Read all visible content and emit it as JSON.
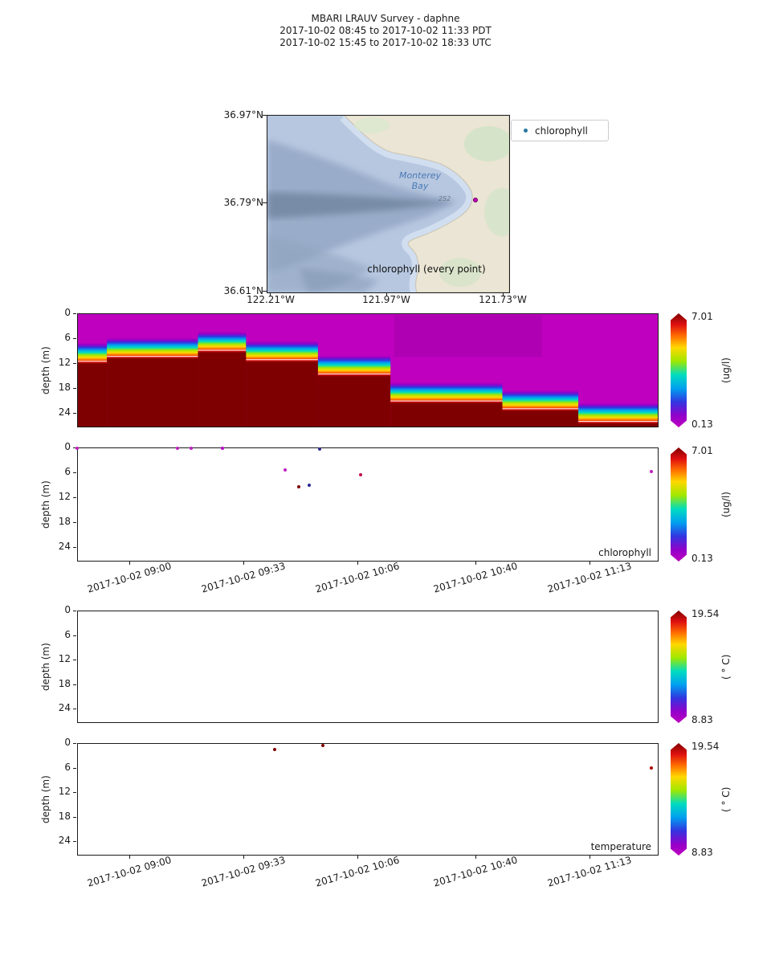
{
  "header": {
    "title": "MBARI LRAUV Survey - daphne",
    "range_pdt": "2017-10-02 08:45  to  2017-10-02 11:33 PDT",
    "range_utc": "2017-10-02 15:45  to  2017-10-02 18:33 UTC"
  },
  "map": {
    "legend_label": "chlorophyll",
    "caption": "chlorophyll (every point)",
    "bay_label_line1": "Monterey",
    "bay_label_line2": "Bay",
    "depth_annotation": "252",
    "lat_ticks": [
      "36.97°N",
      "36.79°N",
      "36.61°N"
    ],
    "lon_ticks": [
      "122.21°W",
      "121.97°W",
      "121.73°W"
    ],
    "vehicle_dot_color": "#c000c0"
  },
  "chart_data": [
    {
      "type": "heatmap",
      "name": "chlorophyll section (interpolated)",
      "ylabel": "depth (m)",
      "yticks": [
        0,
        6,
        12,
        18,
        24
      ],
      "ylim": [
        27.5,
        0
      ],
      "x_range": [
        "2017-10-02 08:45",
        "2017-10-02 11:33"
      ],
      "corner_label": "",
      "colorbar": {
        "max_label": "7.01",
        "min_label": "0.13",
        "unit": "(ug/l)",
        "vmax": 7.01,
        "vmin": 0.13
      },
      "colors": {
        "low": "#bf00bf",
        "high": "#7f0000"
      },
      "band_thickness_m": 5.2,
      "band_segments": [
        {
          "fx0": 0.0,
          "fx1": 0.05,
          "depth_top": 7.0
        },
        {
          "fx0": 0.05,
          "fx1": 0.207,
          "depth_top": 5.8
        },
        {
          "fx0": 0.207,
          "fx1": 0.29,
          "depth_top": 4.3
        },
        {
          "fx0": 0.29,
          "fx1": 0.414,
          "depth_top": 6.6
        },
        {
          "fx0": 0.414,
          "fx1": 0.539,
          "depth_top": 10.1
        },
        {
          "fx0": 0.539,
          "fx1": 0.732,
          "depth_top": 16.7
        },
        {
          "fx0": 0.732,
          "fx1": 0.863,
          "depth_top": 18.6
        },
        {
          "fx0": 0.863,
          "fx1": 1.0,
          "depth_top": 21.7
        }
      ],
      "upper_patch": {
        "fx0": 0.545,
        "fx1": 0.8,
        "depth_top": 0.3,
        "depth_bottom": 10.5,
        "color": "#90009c",
        "opacity": 0.3
      },
      "description": "low chlorophyll (magenta) surface layer above high chlorophyll (dark red) deep layer; rainbow transition band steps deeper through the survey"
    },
    {
      "type": "scatter",
      "name": "chlorophyll",
      "corner_label": "chlorophyll",
      "ylabel": "depth (m)",
      "yticks": [
        0,
        6,
        12,
        18,
        24
      ],
      "ylim": [
        27.5,
        0
      ],
      "x_range": [
        "2017-10-02 08:45",
        "2017-10-02 11:33"
      ],
      "xticks": [
        "2017-10-02 09:00",
        "2017-10-02 09:33",
        "2017-10-02 10:06",
        "2017-10-02 10:40",
        "2017-10-02 11:13"
      ],
      "colorbar": {
        "max_label": "7.01",
        "min_label": "0.13",
        "unit": "(ug/l)",
        "vmax": 7.01,
        "vmin": 0.13
      },
      "points": [
        {
          "t": "2017-10-02 08:45",
          "depth": 0.2,
          "value": 0.3,
          "color": "#c020c0"
        },
        {
          "t": "2017-10-02 09:14",
          "depth": 0.2,
          "value": 0.3,
          "color": "#c020c0"
        },
        {
          "t": "2017-10-02 09:18",
          "depth": 0.2,
          "value": 0.3,
          "color": "#c020c0"
        },
        {
          "t": "2017-10-02 09:27",
          "depth": 0.2,
          "value": 0.4,
          "color": "#b800c8"
        },
        {
          "t": "2017-10-02 09:55",
          "depth": 0.3,
          "value": 2.6,
          "color": "#343090"
        },
        {
          "t": "2017-10-02 09:45",
          "depth": 5.4,
          "value": 0.4,
          "color": "#c020c0"
        },
        {
          "t": "2017-10-02 09:49",
          "depth": 9.5,
          "value": 7.0,
          "color": "#7f0000"
        },
        {
          "t": "2017-10-02 09:52",
          "depth": 9.1,
          "value": 2.4,
          "color": "#282890"
        },
        {
          "t": "2017-10-02 10:07",
          "depth": 6.6,
          "value": 5.8,
          "color": "#c01050"
        },
        {
          "t": "2017-10-02 11:31",
          "depth": 5.9,
          "value": 0.3,
          "color": "#c020c0"
        }
      ]
    },
    {
      "type": "scatter",
      "name": "temperature (no data)",
      "corner_label": "",
      "ylabel": "depth (m)",
      "yticks": [
        0,
        6,
        12,
        18,
        24
      ],
      "ylim": [
        27.5,
        0
      ],
      "x_range": [
        "2017-10-02 08:45",
        "2017-10-02 11:33"
      ],
      "colorbar": {
        "max_label": "19.54",
        "min_label": "8.83",
        "unit": "( ° C)",
        "vmax": 19.54,
        "vmin": 8.83
      },
      "points": []
    },
    {
      "type": "scatter",
      "name": "temperature",
      "corner_label": "temperature",
      "ylabel": "depth (m)",
      "yticks": [
        0,
        6,
        12,
        18,
        24
      ],
      "ylim": [
        27.5,
        0
      ],
      "x_range": [
        "2017-10-02 08:45",
        "2017-10-02 11:33"
      ],
      "xticks": [
        "2017-10-02 09:00",
        "2017-10-02 09:33",
        "2017-10-02 10:06",
        "2017-10-02 10:40",
        "2017-10-02 11:13"
      ],
      "colorbar": {
        "max_label": "19.54",
        "min_label": "8.83",
        "unit": "( ° C)",
        "vmax": 19.54,
        "vmin": 8.83
      },
      "points": [
        {
          "t": "2017-10-02 09:42",
          "depth": 1.5,
          "value": 19.5,
          "color": "#7f0000"
        },
        {
          "t": "2017-10-02 09:56",
          "depth": 0.6,
          "value": 19.5,
          "color": "#7f0000"
        },
        {
          "t": "2017-10-02 11:31",
          "depth": 6.0,
          "value": 19.2,
          "color": "#b00000"
        }
      ]
    }
  ]
}
